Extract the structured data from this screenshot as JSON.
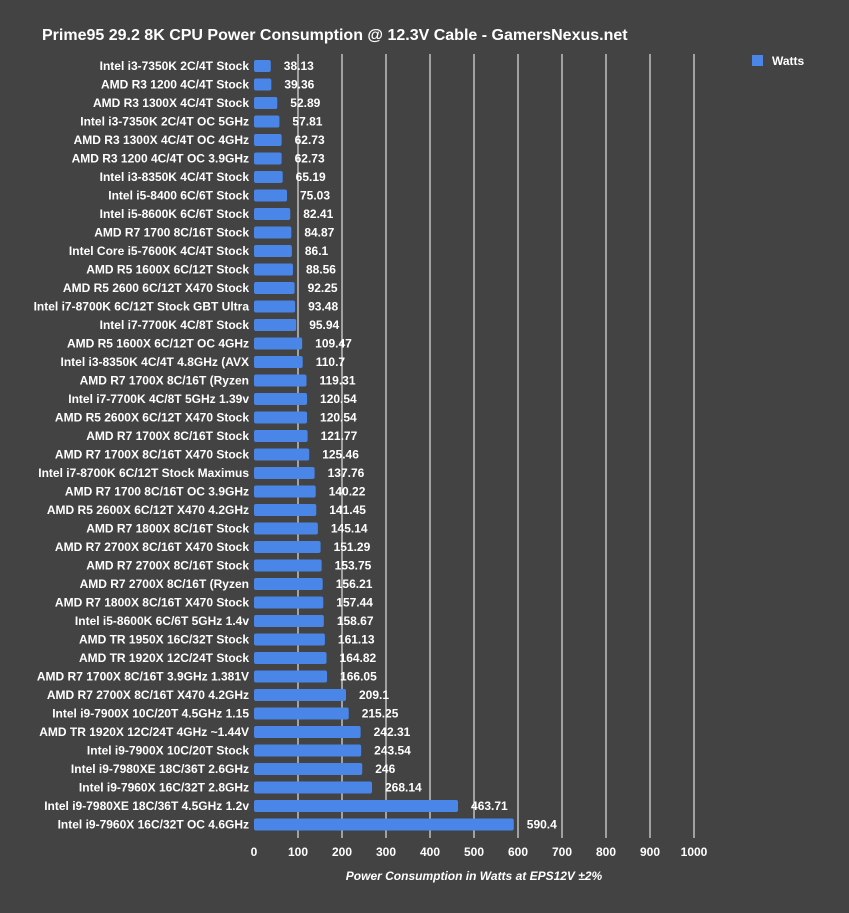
{
  "chart_data": {
    "type": "bar",
    "orientation": "horizontal",
    "title": "Prime95 29.2 8K CPU Power Consumption @ 12.3V Cable - GamersNexus.net",
    "xlabel": "Power Consumption in Watts at EPS12V ±2%",
    "ylabel": "",
    "xlim": [
      0,
      1000
    ],
    "xticks": [
      0,
      100,
      200,
      300,
      400,
      500,
      600,
      700,
      800,
      900,
      1000
    ],
    "grid": true,
    "legend_position": "top-right",
    "series": [
      {
        "name": "Watts",
        "color": "#4a86e8",
        "values": [
          38.13,
          39.36,
          52.89,
          57.81,
          62.73,
          62.73,
          65.19,
          75.03,
          82.41,
          84.87,
          86.1,
          88.56,
          92.25,
          93.48,
          95.94,
          109.47,
          110.7,
          119.31,
          120.54,
          120.54,
          121.77,
          125.46,
          137.76,
          140.22,
          141.45,
          145.14,
          151.29,
          153.75,
          156.21,
          157.44,
          158.67,
          161.13,
          164.82,
          166.05,
          209.1,
          215.25,
          242.31,
          243.54,
          246,
          268.14,
          463.71,
          590.4
        ]
      }
    ],
    "categories": [
      "Intel i3-7350K 2C/4T Stock",
      "AMD R3 1200 4C/4T Stock",
      "AMD R3 1300X 4C/4T Stock",
      "Intel i3-7350K 2C/4T OC 5GHz",
      "AMD R3 1300X 4C/4T OC 4GHz",
      "AMD R3 1200 4C/4T OC 3.9GHz",
      "Intel i3-8350K 4C/4T Stock",
      "Intel i5-8400 6C/6T Stock",
      "Intel i5-8600K 6C/6T Stock",
      "AMD R7 1700 8C/16T Stock",
      "Intel Core i5-7600K 4C/4T Stock",
      "AMD R5 1600X 6C/12T Stock",
      "AMD R5 2600 6C/12T X470 Stock",
      "Intel i7-8700K 6C/12T Stock GBT Ultra",
      "Intel i7-7700K 4C/8T Stock",
      "AMD R5 1600X 6C/12T OC 4GHz",
      "Intel i3-8350K 4C/4T 4.8GHz (AVX",
      "AMD R7 1700X 8C/16T (Ryzen",
      "Intel i7-7700K 4C/8T 5GHz 1.39v",
      "AMD R5 2600X 6C/12T X470 Stock",
      "AMD R7 1700X 8C/16T Stock",
      "AMD R7 1700X 8C/16T X470 Stock",
      "Intel i7-8700K 6C/12T Stock Maximus",
      "AMD R7 1700 8C/16T OC 3.9GHz",
      "AMD R5 2600X 6C/12T X470 4.2GHz",
      "AMD R7 1800X 8C/16T Stock",
      "AMD R7 2700X 8C/16T X470 Stock",
      "AMD R7 2700X 8C/16T Stock",
      "AMD R7 2700X 8C/16T (Ryzen",
      "AMD R7 1800X 8C/16T X470 Stock",
      "Intel i5-8600K 6C/6T 5GHz 1.4v",
      "AMD TR 1950X 16C/32T Stock",
      "AMD TR 1920X 12C/24T Stock",
      "AMD R7 1700X 8C/16T 3.9GHz 1.381V",
      "AMD R7 2700X 8C/16T X470 4.2GHz",
      "Intel i9-7900X 10C/20T 4.5GHz 1.15",
      "AMD TR 1920X 12C/24T 4GHz ~1.44V",
      "Intel i9-7900X 10C/20T Stock",
      "Intel i9-7980XE 18C/36T 2.6GHz",
      "Intel i9-7960X 16C/32T 2.8GHz",
      "Intel i9-7980XE 18C/36T 4.5GHz 1.2v",
      "Intel i9-7960X 16C/32T OC 4.6GHz"
    ],
    "value_labels": [
      "38.13",
      "39.36",
      "52.89",
      "57.81",
      "62.73",
      "62.73",
      "65.19",
      "75.03",
      "82.41",
      "84.87",
      "86.1",
      "88.56",
      "92.25",
      "93.48",
      "95.94",
      "109.47",
      "110.7",
      "119.31",
      "120.54",
      "120.54",
      "121.77",
      "125.46",
      "137.76",
      "140.22",
      "141.45",
      "145.14",
      "151.29",
      "153.75",
      "156.21",
      "157.44",
      "158.67",
      "161.13",
      "164.82",
      "166.05",
      "209.1",
      "215.25",
      "242.31",
      "243.54",
      "246",
      "268.14",
      "463.71",
      "590.4"
    ]
  },
  "colors": {
    "background": "#434343",
    "bar": "#4a86e8",
    "text": "#ffffff",
    "grid": "#ffffff"
  }
}
